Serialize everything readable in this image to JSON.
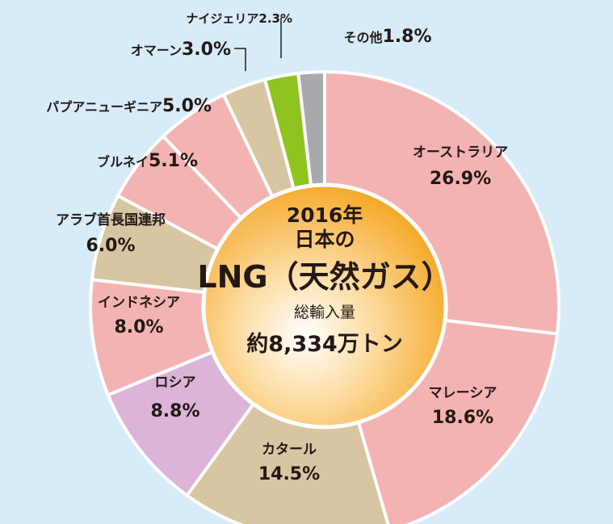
{
  "chart_data": {
    "type": "pie",
    "variant": "donut",
    "center_text": {
      "line1": "2016年",
      "line2": "日本の",
      "line3": "LNG（天然ガス）",
      "line4": "総輸入量",
      "line5": "約8,334万トン"
    },
    "slices": [
      {
        "name": "オーストラリア",
        "pct": "26.9%",
        "value": 26.9,
        "color": "#f4b3b3"
      },
      {
        "name": "マレーシア",
        "pct": "18.6%",
        "value": 18.6,
        "color": "#f4b3b3"
      },
      {
        "name": "カタール",
        "pct": "14.5%",
        "value": 14.5,
        "color": "#d7c6a1"
      },
      {
        "name": "ロシア",
        "pct": "8.8%",
        "value": 8.8,
        "color": "#dbb4d8"
      },
      {
        "name": "インドネシア",
        "pct": "8.0%",
        "value": 8.0,
        "color": "#f4b3b3"
      },
      {
        "name": "アラブ首長国連邦",
        "pct": "6.0%",
        "value": 6.0,
        "color": "#d7c6a1"
      },
      {
        "name": "ブルネイ",
        "pct": "5.1%",
        "value": 5.1,
        "color": "#f4b3b3"
      },
      {
        "name": "パプアニューギニア",
        "pct": "5.0%",
        "value": 5.0,
        "color": "#f4b3b3"
      },
      {
        "name": "オマーン",
        "pct": "3.0%",
        "value": 3.0,
        "color": "#d7c6a1"
      },
      {
        "name": "ナイジェリア",
        "pct": "2.3%",
        "value": 2.3,
        "color": "#8fc31f"
      },
      {
        "name": "その他",
        "pct": "1.8%",
        "value": 1.8,
        "color": "#a7a9ac"
      }
    ]
  }
}
